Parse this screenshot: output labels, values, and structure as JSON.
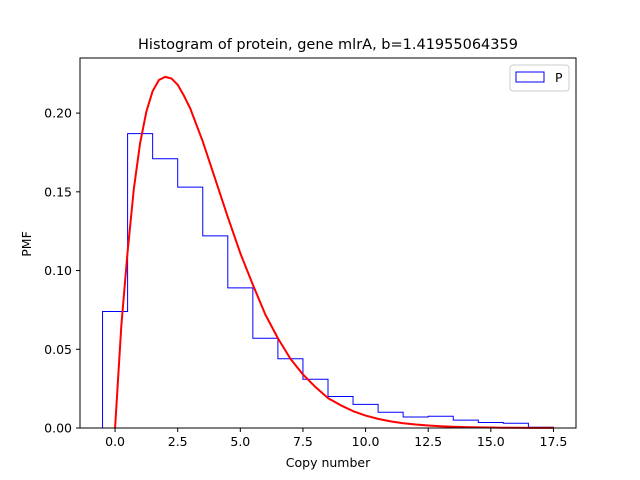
{
  "chart_data": {
    "type": "histogram",
    "title": "Histogram of protein, gene mlrA, b=1.41955064359",
    "xlabel": "Copy number",
    "ylabel": "PMF",
    "xlim": [
      -1.4,
      18.4
    ],
    "ylim": [
      0,
      0.235
    ],
    "xticks": [
      0.0,
      2.5,
      5.0,
      7.5,
      10.0,
      12.5,
      15.0,
      17.5
    ],
    "xtick_labels": [
      "0.0",
      "2.5",
      "5.0",
      "7.5",
      "10.0",
      "12.5",
      "15.0",
      "17.5"
    ],
    "yticks": [
      0.0,
      0.05,
      0.1,
      0.15,
      0.2
    ],
    "ytick_labels": [
      "0.00",
      "0.05",
      "0.10",
      "0.15",
      "0.20"
    ],
    "grid": false,
    "legend": {
      "position": "top-right",
      "entries": [
        "P"
      ]
    },
    "series": [
      {
        "name": "P",
        "kind": "step-histogram",
        "color": "#0000ff",
        "bin_edges": [
          -0.5,
          0.5,
          1.5,
          2.5,
          3.5,
          4.5,
          5.5,
          6.5,
          7.5,
          8.5,
          9.5,
          10.5,
          11.5,
          12.5,
          13.5,
          14.5,
          15.5,
          16.5,
          17.5
        ],
        "values": [
          0.074,
          0.187,
          0.171,
          0.153,
          0.122,
          0.089,
          0.057,
          0.044,
          0.031,
          0.02,
          0.015,
          0.01,
          0.007,
          0.0075,
          0.005,
          0.0035,
          0.003,
          0.0005
        ]
      },
      {
        "kind": "line",
        "color": "#ff0000",
        "x": [
          0.0,
          0.25,
          0.5,
          0.75,
          1.0,
          1.25,
          1.5,
          1.75,
          2.0,
          2.25,
          2.5,
          2.75,
          3.0,
          3.5,
          4.0,
          4.5,
          5.0,
          5.5,
          6.0,
          6.5,
          7.0,
          7.5,
          8.0,
          8.5,
          9.0,
          9.5,
          10.0,
          10.5,
          11.0,
          11.5,
          12.0,
          12.5,
          13.0,
          13.5,
          14.0,
          14.5,
          15.0,
          15.5,
          16.0,
          16.5,
          17.0,
          17.5
        ],
        "y": [
          0.0,
          0.065,
          0.112,
          0.152,
          0.181,
          0.201,
          0.214,
          0.221,
          0.223,
          0.222,
          0.218,
          0.211,
          0.203,
          0.182,
          0.158,
          0.134,
          0.111,
          0.091,
          0.072,
          0.057,
          0.044,
          0.034,
          0.026,
          0.019,
          0.0145,
          0.0107,
          0.0079,
          0.0058,
          0.0042,
          0.003,
          0.0022,
          0.0016,
          0.00115,
          0.0008,
          0.00058,
          0.0004,
          0.00029,
          0.0002,
          0.00014,
          0.0001,
          7e-05,
          5e-05
        ]
      }
    ]
  }
}
